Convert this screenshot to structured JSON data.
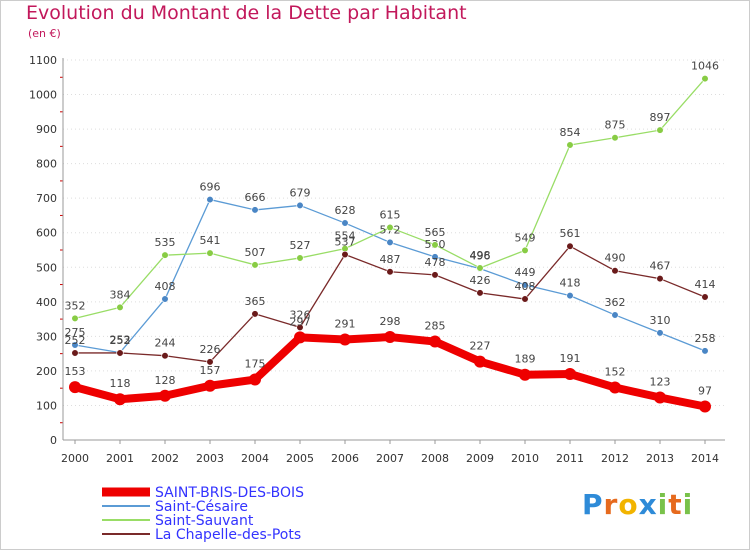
{
  "header": {
    "title": "Evolution du Montant de la Dette par Habitant",
    "unit": "(en €)"
  },
  "logo": {
    "text": "Proxiti"
  },
  "chart_data": {
    "type": "line",
    "title": "Evolution du Montant de la Dette par Habitant",
    "ylabel": "(en €)",
    "xlabel": "",
    "ylim": [
      0,
      1100
    ],
    "yticks": [
      0,
      100,
      200,
      300,
      400,
      500,
      600,
      700,
      800,
      900,
      1000,
      1100
    ],
    "grid": "dotted horizontal",
    "legend": "bottom-left",
    "x": [
      "2000",
      "2001",
      "2002",
      "2003",
      "2004",
      "2005",
      "2006",
      "2007",
      "2008",
      "2009",
      "2010",
      "2011",
      "2012",
      "2013",
      "2014"
    ],
    "series": [
      {
        "name": "Saint-Césaire",
        "color": "#5b9bd5",
        "marker": "#4a86c5",
        "values": [
          275,
          253,
          408,
          696,
          666,
          679,
          628,
          572,
          530,
          496,
          449,
          418,
          362,
          310,
          258
        ]
      },
      {
        "name": "Saint-Sauvant",
        "color": "#99dd66",
        "marker": "#88cc44",
        "values": [
          352,
          384,
          535,
          541,
          507,
          527,
          554,
          615,
          565,
          498,
          549,
          854,
          875,
          897,
          1046
        ]
      },
      {
        "name": "La Chapelle-des-Pots",
        "color": "#7a2a2a",
        "marker": "#6a1a1a",
        "values": [
          252,
          252,
          244,
          226,
          365,
          326,
          537,
          487,
          478,
          426,
          408,
          561,
          490,
          467,
          414
        ]
      },
      {
        "name": "SAINT-BRIS-DES-BOIS",
        "color": "#ee0000",
        "marker": "#ee0000",
        "bold": true,
        "values": [
          153,
          118,
          128,
          157,
          175,
          297,
          291,
          298,
          285,
          227,
          189,
          191,
          152,
          123,
          97
        ]
      }
    ],
    "legend_colors": {
      "SAINT-BRIS-DES-BOIS": "#3333ff",
      "Saint-Césaire": "#3333ff",
      "Saint-Sauvant": "#3333ff",
      "La Chapelle-des-Pots": "#3333ff"
    }
  }
}
